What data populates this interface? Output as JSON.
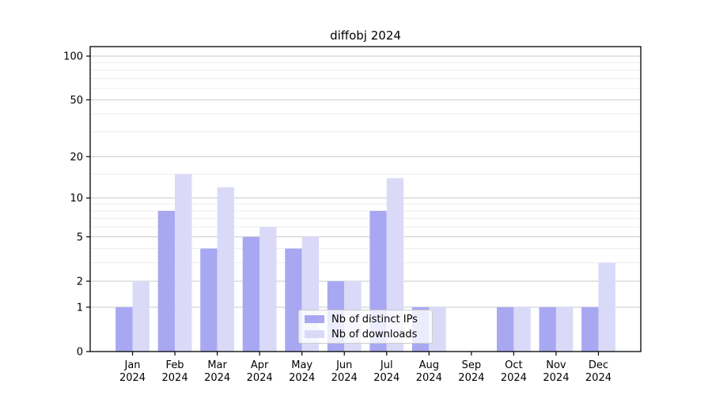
{
  "chart_data": {
    "type": "bar",
    "title": "diffobj 2024",
    "categories": [
      "Jan\n2024",
      "Feb\n2024",
      "Mar\n2024",
      "Apr\n2024",
      "May\n2024",
      "Jun\n2024",
      "Jul\n2024",
      "Aug\n2024",
      "Sep\n2024",
      "Oct\n2024",
      "Nov\n2024",
      "Dec\n2024"
    ],
    "series": [
      {
        "name": "Nb of distinct IPs",
        "color": "#a8a8f2",
        "values": [
          1,
          8,
          4,
          5,
          4,
          2,
          8,
          1,
          0,
          1,
          1,
          1
        ]
      },
      {
        "name": "Nb of downloads",
        "color": "#dadaf8",
        "values": [
          2,
          15,
          12,
          6,
          5,
          2,
          14,
          1,
          0,
          1,
          1,
          3
        ]
      }
    ],
    "xlabel": "",
    "ylabel": "",
    "yscale": "log1p",
    "ylim": [
      0,
      116
    ],
    "yticks": [
      0,
      1,
      2,
      5,
      10,
      20,
      50,
      100
    ],
    "minor_gridlines": [
      3,
      4,
      6,
      7,
      8,
      9,
      15,
      30,
      40,
      60,
      70,
      80,
      90
    ],
    "grid": "on",
    "legend_position": "lower-center-inside",
    "style": {
      "major_grid_color": "#c9c9c9",
      "minor_grid_color": "#ededed",
      "frame_color": "#000000",
      "tick_label_color": "#000000"
    }
  }
}
